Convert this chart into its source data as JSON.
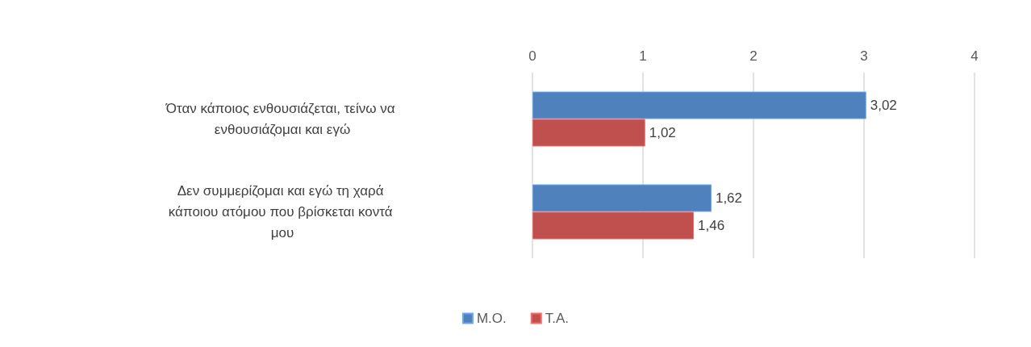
{
  "chart_data": {
    "type": "bar",
    "orientation": "horizontal",
    "categories": [
      "Όταν κάποιος ενθουσιάζεται, τείνω να ενθουσιάζομαι και εγώ",
      "Δεν συμμερίζομαι και εγώ τη χαρά κάποιου ατόμου που βρίσκεται κοντά μου"
    ],
    "series": [
      {
        "name": "Μ.Ο.",
        "color": "#4f81bd",
        "values": [
          3.02,
          1.62
        ],
        "value_labels": [
          "3,02",
          "1,62"
        ],
        "axis": "x2"
      },
      {
        "name": "Τ.Α.",
        "color": "#c0504d",
        "values": [
          1.02,
          1.46
        ],
        "value_labels": [
          "1,02",
          "1,46"
        ],
        "axis": "x2"
      }
    ],
    "x2lim": [
      0,
      4
    ],
    "x2ticks": [
      0,
      1,
      2,
      3,
      4
    ],
    "grid": "x",
    "legend": "bottom"
  }
}
